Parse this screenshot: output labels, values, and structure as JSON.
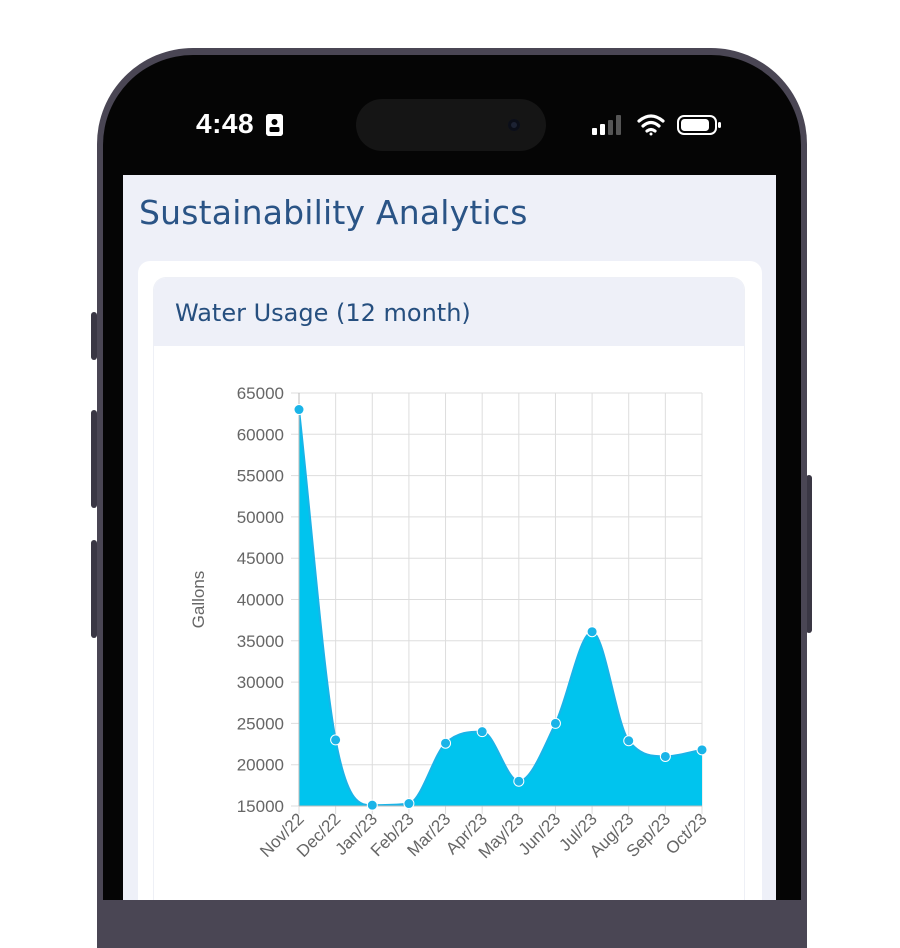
{
  "status_bar": {
    "time": "4:48",
    "icons": [
      "id-card-icon",
      "cellular-signal-icon",
      "wifi-icon",
      "battery-icon"
    ]
  },
  "page": {
    "title": "Sustainability Analytics"
  },
  "card": {
    "title": "Water Usage (12 month)"
  },
  "colors": {
    "title": "#2a5486",
    "screen_bg": "#eef0f8",
    "area_fill": "#00c4ee",
    "point": "#1ab4e8",
    "grid": "#dddddd",
    "axis_text": "#666666"
  },
  "chart_data": {
    "type": "area",
    "title": "",
    "xlabel": "",
    "ylabel": "Gallons",
    "categories": [
      "Nov/22",
      "Dec/22",
      "Jan/23",
      "Feb/23",
      "Mar/23",
      "Apr/23",
      "May/23",
      "Jun/23",
      "Jul/23",
      "Aug/23",
      "Sep/23",
      "Oct/23"
    ],
    "values": [
      63000,
      23000,
      15100,
      15300,
      22600,
      24000,
      18000,
      25000,
      36100,
      22900,
      21000,
      21800
    ],
    "ylim": [
      15000,
      65000
    ],
    "yticks": [
      15000,
      20000,
      25000,
      30000,
      35000,
      40000,
      45000,
      50000,
      55000,
      60000,
      65000
    ],
    "grid": true,
    "legend": "none"
  }
}
